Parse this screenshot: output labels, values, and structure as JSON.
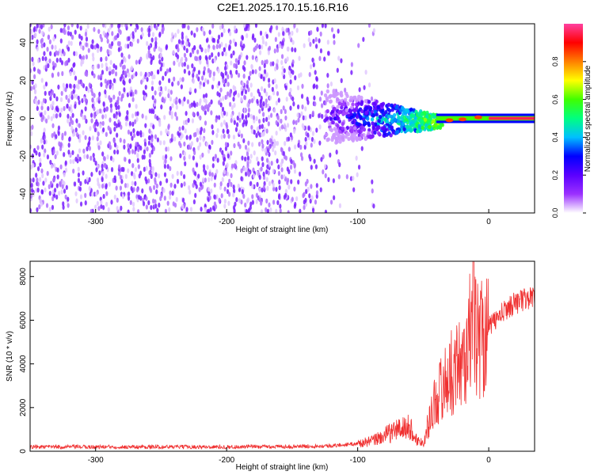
{
  "title": "C2E1.2025.170.15.16.R16",
  "colors": {
    "snr_line": "#f03030",
    "colormap": [
      "#ffffff",
      "#9b30ff",
      "#5a00ff",
      "#0000ff",
      "#00c0ff",
      "#00ff80",
      "#40ff00",
      "#ffff00",
      "#ff8000",
      "#ff0000",
      "#ff40a0"
    ]
  },
  "chart_data": [
    {
      "type": "heatmap",
      "xlabel": "Height of straight line (km)",
      "ylabel": "Frequency (Hz)",
      "xlim": [
        -350,
        35
      ],
      "ylim": [
        -50,
        50
      ],
      "x_ticks": [
        -300,
        -200,
        -100,
        0
      ],
      "y_ticks": [
        -40,
        -20,
        0,
        20,
        40
      ],
      "colorbar": {
        "label": "Normalized spectral amplitude",
        "range": [
          0,
          1
        ],
        "ticks": [
          0.0,
          0.2,
          0.4,
          0.6,
          0.8
        ]
      },
      "features": {
        "noise_region_x": [
          -350,
          -100
        ],
        "transition_region_x": [
          -100,
          -40
        ],
        "signal_line_x": [
          -40,
          35
        ],
        "signal_frequency": 0,
        "signal_amplitude": 0.95
      }
    },
    {
      "type": "line",
      "xlabel": "Height of straight line (km)",
      "ylabel": "SNR (10 * v/v)",
      "xlim": [
        -350,
        35
      ],
      "ylim": [
        0,
        8700
      ],
      "x_ticks": [
        -300,
        -200,
        -100,
        0
      ],
      "y_ticks": [
        0,
        2000,
        4000,
        6000,
        8000
      ],
      "series": [
        {
          "x": [
            -350,
            -300,
            -250,
            -200,
            -150,
            -120,
            -100,
            -90,
            -80,
            -70,
            -60,
            -55,
            -50,
            -45,
            -40,
            -35,
            -30,
            -25,
            -20,
            -15,
            -12,
            -10,
            -5,
            0,
            5,
            10,
            15,
            20,
            25,
            30,
            35
          ],
          "values": [
            200,
            200,
            200,
            200,
            220,
            250,
            350,
            450,
            700,
            1000,
            1100,
            500,
            400,
            1500,
            2500,
            3000,
            3500,
            3800,
            4200,
            4800,
            8600,
            5200,
            5400,
            5700,
            6000,
            6300,
            6600,
            6800,
            6900,
            7000,
            7100
          ]
        }
      ]
    }
  ]
}
